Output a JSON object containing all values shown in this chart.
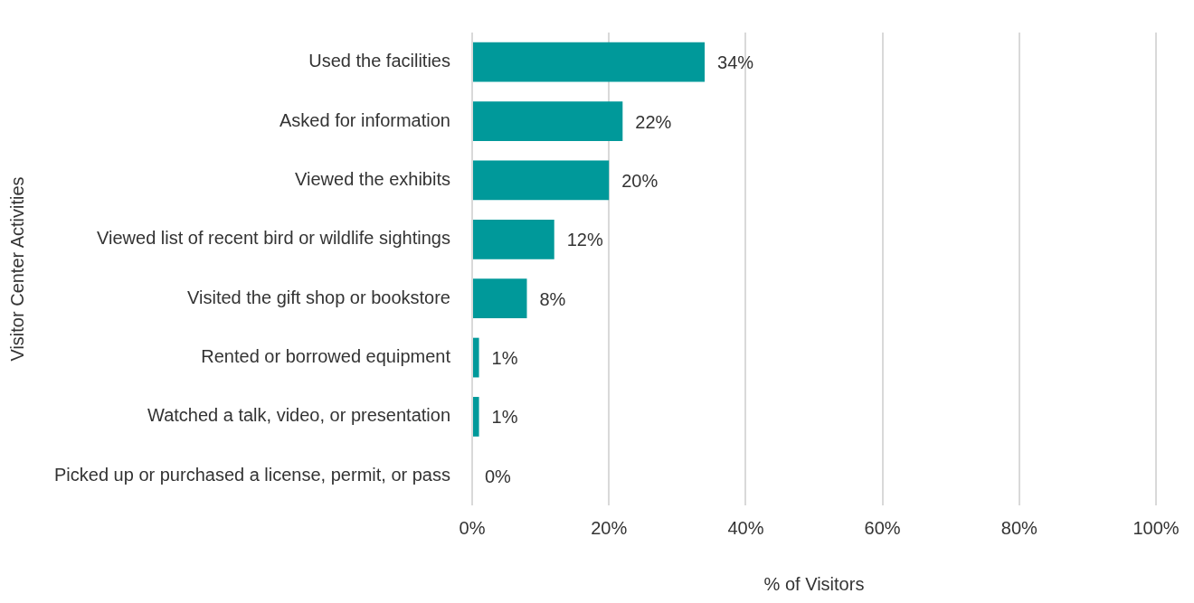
{
  "chart_data": {
    "type": "bar",
    "orientation": "horizontal",
    "xlabel": "% of Visitors",
    "ylabel": "Visitor Center Activities",
    "categories": [
      "Used the facilities",
      "Asked for information",
      "Viewed the exhibits",
      "Viewed list of recent bird or wildlife sightings",
      "Visited the gift shop or bookstore",
      "Rented or borrowed equipment",
      "Watched a talk, video, or presentation",
      "Picked up or purchased a license, permit, or pass"
    ],
    "values": [
      34,
      22,
      20,
      12,
      8,
      1,
      1,
      0
    ],
    "value_labels": [
      "34%",
      "22%",
      "20%",
      "12%",
      "8%",
      "1%",
      "1%",
      "0%"
    ],
    "color": "#00999a",
    "xlim": [
      0,
      100
    ],
    "xticks": [
      {
        "value": 0,
        "label": "0%"
      },
      {
        "value": 20,
        "label": "20%"
      },
      {
        "value": 40,
        "label": "40%"
      },
      {
        "value": 60,
        "label": "60%"
      },
      {
        "value": 80,
        "label": "80%"
      },
      {
        "value": 100,
        "label": "100%"
      }
    ],
    "grid": "x",
    "legend": false
  }
}
